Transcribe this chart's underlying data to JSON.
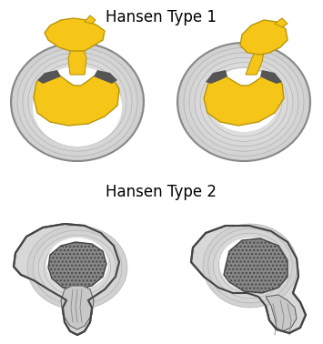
{
  "title1": "Hansen Type 1",
  "title2": "Hansen Type 2",
  "bg_color": "#ffffff",
  "nucleus_yellow": "#f5c518",
  "nucleus_yellow_edge": "#b8960a",
  "nucleus_gray": "#888888",
  "nucleus_gray_edge": "#555555",
  "font_size_title": 12,
  "ring_edge": "#aaaaaa",
  "dark_band": "#444444",
  "white": "#ffffff"
}
